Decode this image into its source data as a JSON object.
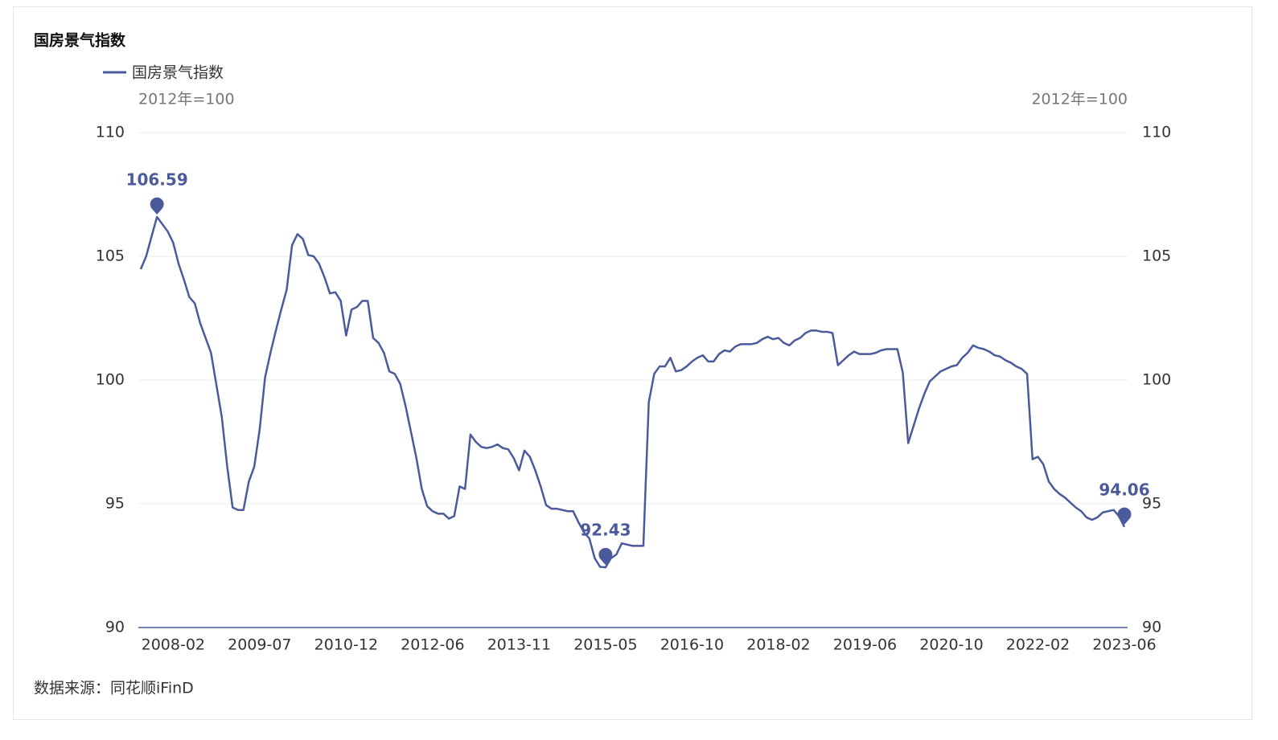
{
  "chart_data": {
    "type": "line",
    "title": "国房景气指数",
    "ylabel": "2012年=100",
    "y2label": "2012年=100",
    "source": "数据来源：同花顺iFinD",
    "categories": [
      null,
      null,
      null,
      null,
      null,
      null,
      "2008-02",
      null,
      null,
      null,
      null,
      null,
      null,
      null,
      null,
      null,
      null,
      null,
      null,
      null,
      null,
      null,
      "2009-07",
      null,
      null,
      null,
      null,
      null,
      null,
      null,
      null,
      null,
      null,
      null,
      null,
      null,
      null,
      null,
      "2010-12",
      null,
      null,
      null,
      null,
      null,
      null,
      null,
      null,
      null,
      null,
      null,
      null,
      null,
      null,
      null,
      "2012-06",
      null,
      null,
      null,
      null,
      null,
      null,
      null,
      null,
      null,
      null,
      null,
      null,
      null,
      null,
      null,
      "2013-11",
      null,
      null,
      null,
      null,
      null,
      null,
      null,
      null,
      null,
      null,
      null,
      null,
      null,
      null,
      null,
      "2015-05",
      null,
      null,
      null,
      null,
      null,
      null,
      null,
      null,
      null,
      null,
      null,
      null,
      null,
      null,
      null,
      "2016-10",
      null,
      null,
      null,
      null,
      null,
      null,
      null,
      null,
      null,
      null,
      null,
      null,
      null,
      null,
      null,
      "2018-02",
      null,
      null,
      null,
      null,
      null,
      null,
      null,
      null,
      null,
      null,
      null,
      null,
      null,
      null,
      null,
      "2019-06",
      null,
      null,
      null,
      null,
      null,
      null,
      null,
      null,
      null,
      null,
      null,
      null,
      null,
      null,
      null,
      "2020-10",
      null,
      null,
      null,
      null,
      null,
      null,
      null,
      null,
      null,
      null,
      null,
      null,
      null,
      null,
      null,
      "2022-02",
      null,
      null,
      null,
      null,
      null,
      null,
      null,
      null,
      null,
      null,
      null,
      null,
      null,
      null,
      null,
      "2023-06"
    ],
    "series": [
      {
        "name": "国房景气指数",
        "color": "#4a5a9b",
        "values": [
          104.48,
          105,
          105.8,
          106.59,
          106.3,
          106,
          105.55,
          104.7,
          104.05,
          103.35,
          103.1,
          102.3,
          101.7,
          101.1,
          99.8,
          98.5,
          96.5,
          94.85,
          94.75,
          94.75,
          95.9,
          96.5,
          98,
          100.1,
          101.1,
          102,
          102.85,
          103.65,
          105.45,
          105.9,
          105.7,
          105.05,
          105,
          104.7,
          104.15,
          103.5,
          103.55,
          103.2,
          101.8,
          102.85,
          102.95,
          103.2,
          103.2,
          101.7,
          101.5,
          101.1,
          100.35,
          100.25,
          99.85,
          98.95,
          97.9,
          96.85,
          95.6,
          94.9,
          94.7,
          94.6,
          94.6,
          94.4,
          94.5,
          95.7,
          95.6,
          97.8,
          97.5,
          97.3,
          97.25,
          97.3,
          97.4,
          97.25,
          97.2,
          96.85,
          96.35,
          97.15,
          96.9,
          96.35,
          95.7,
          94.95,
          94.8,
          94.8,
          94.75,
          94.7,
          94.7,
          94.25,
          93.85,
          93.6,
          92.8,
          92.45,
          92.43,
          92.8,
          92.95,
          93.4,
          93.35,
          93.3,
          93.3,
          93.3,
          99.1,
          100.25,
          100.55,
          100.55,
          100.9,
          100.35,
          100.4,
          100.55,
          100.75,
          100.9,
          101,
          100.75,
          100.75,
          101.05,
          101.2,
          101.15,
          101.35,
          101.45,
          101.45,
          101.45,
          101.5,
          101.65,
          101.75,
          101.65,
          101.7,
          101.5,
          101.4,
          101.6,
          101.7,
          101.9,
          102,
          102,
          101.95,
          101.95,
          101.9,
          100.6,
          100.8,
          101,
          101.15,
          101.05,
          101.05,
          101.05,
          101.1,
          101.2,
          101.25,
          101.25,
          101.25,
          100.3,
          97.45,
          98.15,
          98.85,
          99.45,
          99.95,
          100.15,
          100.35,
          100.45,
          100.55,
          100.6,
          100.9,
          101.1,
          101.4,
          101.3,
          101.25,
          101.15,
          101,
          100.95,
          100.8,
          100.7,
          100.55,
          100.45,
          100.25,
          96.8,
          96.9,
          96.6,
          95.9,
          95.6,
          95.4,
          95.25,
          95.05,
          94.85,
          94.7,
          94.45,
          94.35,
          94.45,
          94.65,
          94.7,
          94.75,
          94.5,
          94.06
        ]
      }
    ],
    "ylim": [
      90,
      110
    ],
    "yticks": [
      90,
      95,
      100,
      105,
      110
    ],
    "y2lim": [
      90,
      110
    ],
    "y2ticks": [
      90,
      95,
      100,
      105,
      110
    ],
    "grid": true,
    "legend": "top-left"
  }
}
